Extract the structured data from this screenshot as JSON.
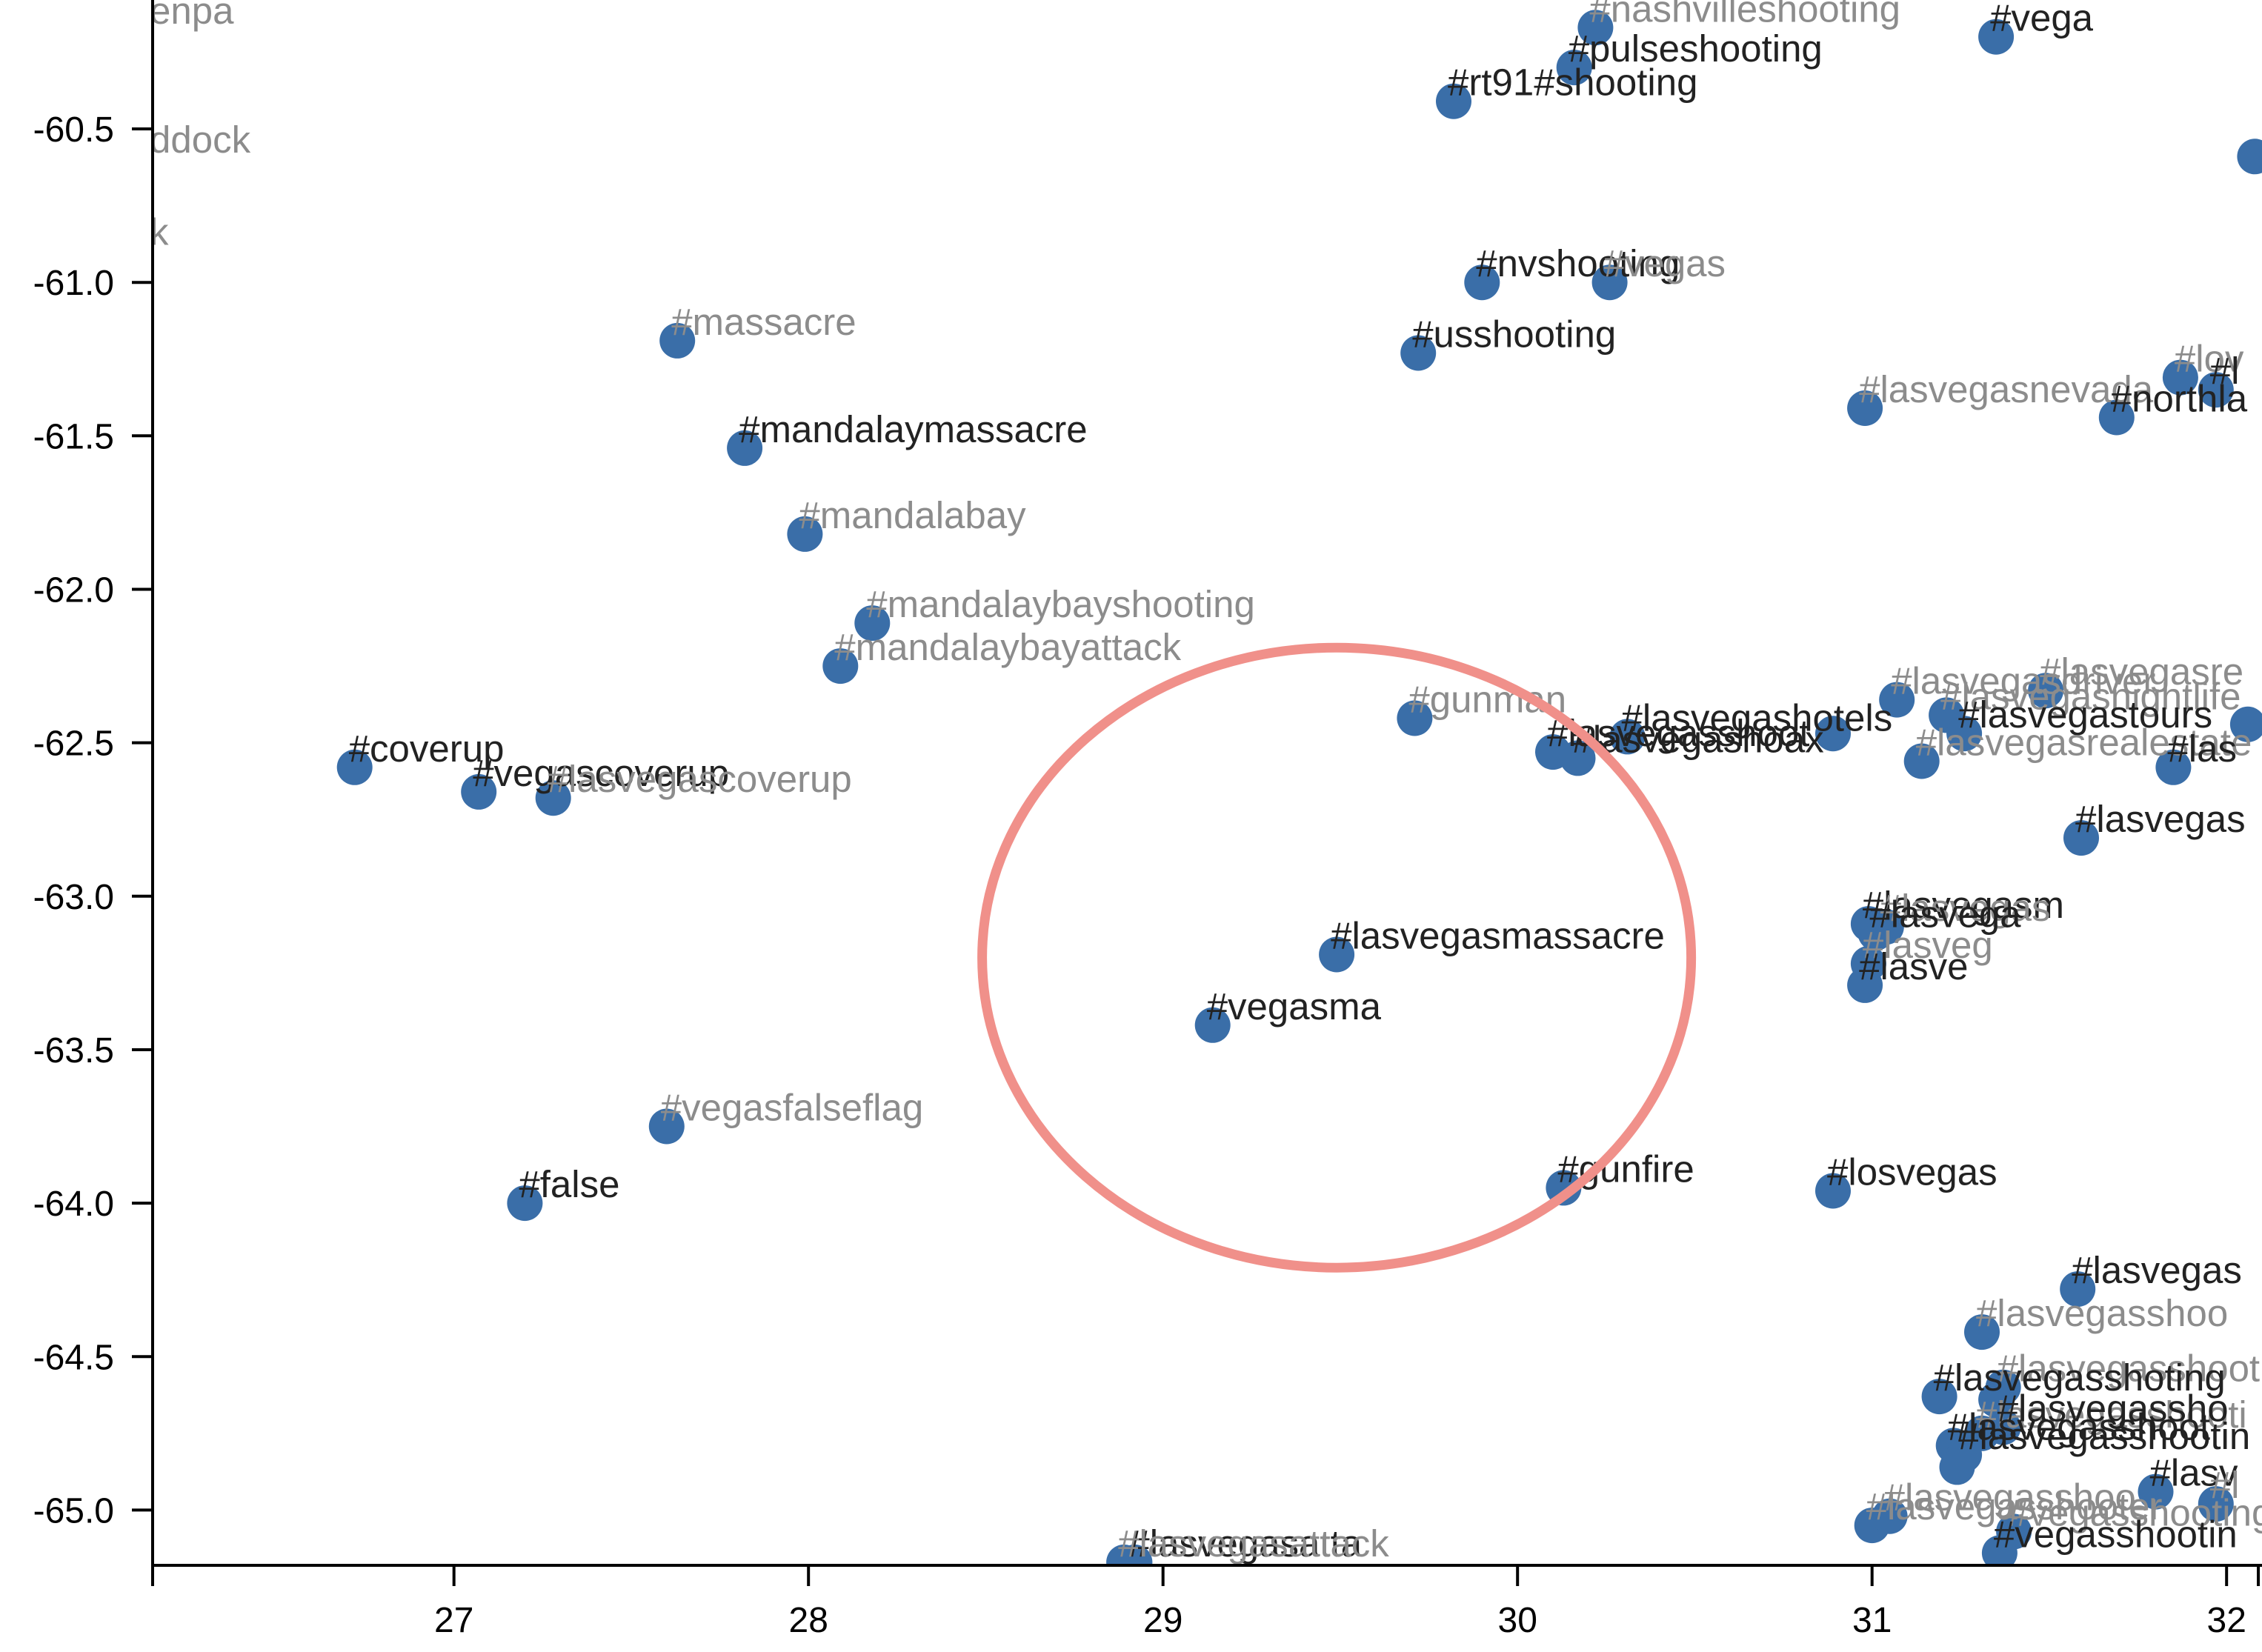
{
  "chart_data": {
    "type": "scatter",
    "title": "",
    "xlabel": "",
    "ylabel": "",
    "xlim": [
      26.15,
      32.1
    ],
    "ylim": [
      -65.18,
      -60.08
    ],
    "x_ticks": [
      27,
      28,
      29,
      30,
      31,
      32
    ],
    "y_ticks": [
      -60.5,
      -61.0,
      -61.5,
      -62.0,
      -62.5,
      -63.0,
      -63.5,
      -64.0,
      -64.5,
      -65.0
    ],
    "x_tick_labels": [
      "27",
      "28",
      "29",
      "30",
      "31",
      "32"
    ],
    "y_tick_labels": [
      "-60.5",
      "-61.0",
      "-61.5",
      "-62.0",
      "-62.5",
      "-63.0",
      "-63.5",
      "-64.0",
      "-64.5",
      "-65.0"
    ],
    "grid": false,
    "point_color": "#3a6ea8",
    "label_colors": {
      "dark": "#222222",
      "light": "#8c8c8c"
    },
    "highlight": {
      "shape": "ellipse",
      "color": "#f0908a",
      "cx": 29.49,
      "cy": -63.2,
      "rx": 1.0,
      "ry": -1.01
    },
    "offscreen_labels": [
      {
        "text": "enpa",
        "x": 26.15,
        "y": -60.08,
        "tone": "light"
      },
      {
        "text": "ddock",
        "x": 26.15,
        "y": -60.5,
        "tone": "light"
      },
      {
        "text": "k",
        "x": 26.15,
        "y": -60.8,
        "tone": "light"
      }
    ],
    "points": [
      {
        "x": 30.22,
        "y": -60.17,
        "label": "#nashvilleshooting",
        "tone": "light"
      },
      {
        "x": 31.35,
        "y": -60.2,
        "label": "#vega",
        "tone": "dark"
      },
      {
        "x": 30.16,
        "y": -60.3,
        "label": "#pulseshooting",
        "tone": "dark"
      },
      {
        "x": 29.82,
        "y": -60.41,
        "label": "#rt91#shooting",
        "tone": "dark"
      },
      {
        "x": 32.08,
        "y": -60.59,
        "label": "",
        "tone": "dark"
      },
      {
        "x": 29.9,
        "y": -61.0,
        "label": "#nvshooting",
        "tone": "dark"
      },
      {
        "x": 30.26,
        "y": -61.0,
        "label": "#vegas",
        "tone": "light"
      },
      {
        "x": 27.63,
        "y": -61.19,
        "label": "#massacre",
        "tone": "light"
      },
      {
        "x": 29.72,
        "y": -61.23,
        "label": "#usshooting",
        "tone": "dark"
      },
      {
        "x": 31.87,
        "y": -61.31,
        "label": "#lov",
        "tone": "light"
      },
      {
        "x": 30.98,
        "y": -61.41,
        "label": "#lasvegasnevada",
        "tone": "light"
      },
      {
        "x": 31.69,
        "y": -61.44,
        "label": "#northla",
        "tone": "dark"
      },
      {
        "x": 31.97,
        "y": -61.35,
        "label": "#l",
        "tone": "dark"
      },
      {
        "x": 27.82,
        "y": -61.54,
        "label": "#mandalaymassacre",
        "tone": "dark"
      },
      {
        "x": 27.99,
        "y": -61.82,
        "label": "#mandalabay",
        "tone": "light"
      },
      {
        "x": 28.18,
        "y": -62.11,
        "label": "#mandalaybayshooting",
        "tone": "light"
      },
      {
        "x": 28.09,
        "y": -62.25,
        "label": "#mandalaybayattack",
        "tone": "light"
      },
      {
        "x": 31.07,
        "y": -62.36,
        "label": "#lasvegasdriver",
        "tone": "light"
      },
      {
        "x": 31.49,
        "y": -62.33,
        "label": "#lasvegasre",
        "tone": "light"
      },
      {
        "x": 31.21,
        "y": -62.41,
        "label": "#lasvegasnightlife",
        "tone": "light"
      },
      {
        "x": 29.71,
        "y": -62.42,
        "label": "#gunman",
        "tone": "light"
      },
      {
        "x": 32.06,
        "y": -62.44,
        "label": "",
        "tone": "dark"
      },
      {
        "x": 31.26,
        "y": -62.47,
        "label": "#lasvegastours",
        "tone": "dark"
      },
      {
        "x": 30.31,
        "y": -62.48,
        "label": "#lasvegashotels",
        "tone": "dark"
      },
      {
        "x": 30.89,
        "y": -62.47,
        "label": "",
        "tone": "dark"
      },
      {
        "x": 30.1,
        "y": -62.53,
        "label": "#lasvegasshoot",
        "tone": "dark"
      },
      {
        "x": 30.17,
        "y": -62.55,
        "label": "#lasvegashoax",
        "tone": "dark"
      },
      {
        "x": 31.14,
        "y": -62.56,
        "label": "#lasvegasrealestate",
        "tone": "light"
      },
      {
        "x": 31.85,
        "y": -62.58,
        "label": "#las",
        "tone": "dark"
      },
      {
        "x": 26.72,
        "y": -62.58,
        "label": "#coverup",
        "tone": "dark"
      },
      {
        "x": 27.07,
        "y": -62.66,
        "label": "#vegascoverup",
        "tone": "dark"
      },
      {
        "x": 27.28,
        "y": -62.68,
        "label": "#lasvegascoverup",
        "tone": "light"
      },
      {
        "x": 31.59,
        "y": -62.81,
        "label": "#lasvegas",
        "tone": "dark"
      },
      {
        "x": 30.99,
        "y": -63.09,
        "label": "#lasvegasm",
        "tone": "dark"
      },
      {
        "x": 31.04,
        "y": -63.1,
        "label": "#lasvegas",
        "tone": "light"
      },
      {
        "x": 31.01,
        "y": -63.12,
        "label": "#lasvega",
        "tone": "dark"
      },
      {
        "x": 29.49,
        "y": -63.19,
        "label": "#lasvegasmassacre",
        "tone": "dark"
      },
      {
        "x": 30.99,
        "y": -63.22,
        "label": "#lasveg",
        "tone": "light"
      },
      {
        "x": 30.98,
        "y": -63.29,
        "label": "#lasve",
        "tone": "dark"
      },
      {
        "x": 29.14,
        "y": -63.42,
        "label": "#vegasma",
        "tone": "dark"
      },
      {
        "x": 27.6,
        "y": -63.75,
        "label": "#vegasfalseflag",
        "tone": "light"
      },
      {
        "x": 30.13,
        "y": -63.95,
        "label": "#gunfire",
        "tone": "dark"
      },
      {
        "x": 30.89,
        "y": -63.96,
        "label": "#losvegas",
        "tone": "dark"
      },
      {
        "x": 27.2,
        "y": -64.0,
        "label": "#false",
        "tone": "dark"
      },
      {
        "x": 31.58,
        "y": -64.28,
        "label": "#lasvegas",
        "tone": "dark"
      },
      {
        "x": 31.31,
        "y": -64.42,
        "label": "#lasvegasshoo",
        "tone": "light"
      },
      {
        "x": 31.37,
        "y": -64.6,
        "label": "#lasvegasshooting",
        "tone": "light"
      },
      {
        "x": 31.19,
        "y": -64.63,
        "label": "#lasvegasshoting",
        "tone": "dark"
      },
      {
        "x": 31.35,
        "y": -64.64,
        "label": "",
        "tone": "dark"
      },
      {
        "x": 31.31,
        "y": -64.75,
        "label": "#lasvegasshooti",
        "tone": "light"
      },
      {
        "x": 31.37,
        "y": -64.73,
        "label": "#lasvegassho",
        "tone": "dark"
      },
      {
        "x": 31.23,
        "y": -64.79,
        "label": "#lasvegasshoot",
        "tone": "dark"
      },
      {
        "x": 31.26,
        "y": -64.82,
        "label": "#lasvegasshootin",
        "tone": "dark"
      },
      {
        "x": 31.24,
        "y": -64.86,
        "label": "",
        "tone": "dark"
      },
      {
        "x": 31.8,
        "y": -64.94,
        "label": "#lasv",
        "tone": "dark"
      },
      {
        "x": 31.97,
        "y": -64.98,
        "label": "#l",
        "tone": "light"
      },
      {
        "x": 31.0,
        "y": -65.05,
        "label": "#lasvegasshooter",
        "tone": "light"
      },
      {
        "x": 31.05,
        "y": -65.02,
        "label": "#lasvegasshoo",
        "tone": "light"
      },
      {
        "x": 31.4,
        "y": -65.07,
        "label": "#vegasshooting",
        "tone": "light"
      },
      {
        "x": 31.36,
        "y": -65.14,
        "label": "#vegasshootin",
        "tone": "dark"
      },
      {
        "x": 28.92,
        "y": -65.17,
        "label": "#lasvegasatta",
        "tone": "dark"
      },
      {
        "x": 28.89,
        "y": -65.17,
        "label": "#lasvegasattack",
        "tone": "light"
      }
    ]
  }
}
